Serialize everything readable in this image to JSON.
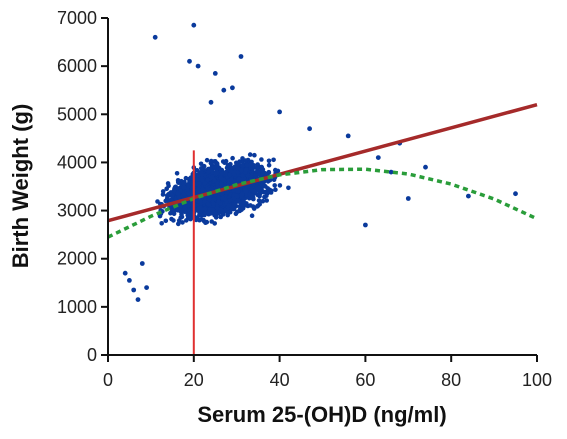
{
  "chart_data": {
    "type": "scatter",
    "xlabel": "Serum 25-(OH)D (ng/ml)",
    "ylabel": "Birth Weight (g)",
    "xlim": [
      0,
      100
    ],
    "ylim": [
      0,
      7000
    ],
    "x_ticks": [
      "0",
      "20",
      "40",
      "60",
      "80",
      "100"
    ],
    "y_ticks": [
      "0",
      "1000",
      "2000",
      "3000",
      "4000",
      "5000",
      "6000",
      "7000"
    ],
    "grid": false,
    "colors": {
      "points": "#0a3a9c",
      "linear_fit": "#a52a2a",
      "quadratic_fit": "#2a9d3a",
      "vertical_line": "#e03030"
    },
    "linear_fit": {
      "x": [
        0,
        100
      ],
      "y": [
        2790,
        5200
      ]
    },
    "quadratic_fit": {
      "x": [
        0,
        10,
        20,
        30,
        40,
        50,
        60,
        70,
        80,
        90,
        100
      ],
      "y": [
        2450,
        2880,
        3250,
        3540,
        3740,
        3850,
        3860,
        3760,
        3550,
        3240,
        2830
      ]
    },
    "vertical_line": {
      "x": 20,
      "y": [
        0,
        4250
      ]
    },
    "scatter_notable_points": [
      {
        "x": 11,
        "y": 6600
      },
      {
        "x": 20,
        "y": 6850
      },
      {
        "x": 19,
        "y": 6100
      },
      {
        "x": 21,
        "y": 6000
      },
      {
        "x": 31,
        "y": 6200
      },
      {
        "x": 25,
        "y": 5850
      },
      {
        "x": 27,
        "y": 5500
      },
      {
        "x": 29,
        "y": 5550
      },
      {
        "x": 24,
        "y": 5250
      },
      {
        "x": 4,
        "y": 1700
      },
      {
        "x": 5,
        "y": 1550
      },
      {
        "x": 7,
        "y": 1150
      },
      {
        "x": 6,
        "y": 1350
      },
      {
        "x": 9,
        "y": 1400
      },
      {
        "x": 8,
        "y": 1900
      },
      {
        "x": 95,
        "y": 3350
      },
      {
        "x": 84,
        "y": 3300
      },
      {
        "x": 74,
        "y": 3900
      },
      {
        "x": 70,
        "y": 3250
      },
      {
        "x": 66,
        "y": 3800
      },
      {
        "x": 60,
        "y": 2700
      },
      {
        "x": 63,
        "y": 4100
      },
      {
        "x": 68,
        "y": 4400
      },
      {
        "x": 56,
        "y": 4550
      },
      {
        "x": 47,
        "y": 4700
      },
      {
        "x": 40,
        "y": 5050
      }
    ],
    "scatter_cloud": {
      "n": 2600,
      "x_range": [
        6,
        58
      ],
      "x_center": 26,
      "x_spread": 8,
      "y_center_at_x20": 3300,
      "y_slope_per_unit": 22,
      "y_spread": 420
    }
  }
}
